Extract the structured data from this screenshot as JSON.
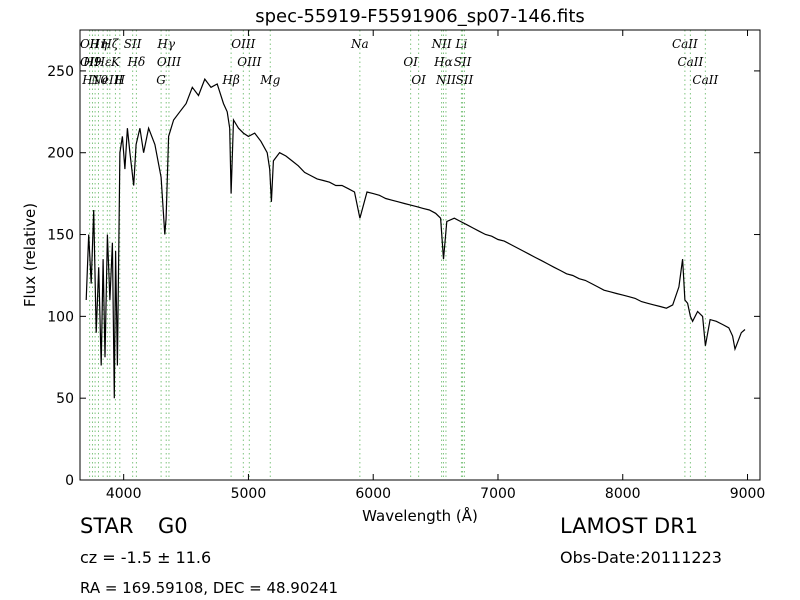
{
  "chart_data": {
    "type": "line",
    "title": "spec-55919-F5591906_sp07-146.fits",
    "xlabel": "Wavelength (Å)",
    "ylabel": "Flux (relative)",
    "xlim": [
      3650,
      9100
    ],
    "ylim": [
      0,
      275
    ],
    "xticks": [
      4000,
      5000,
      6000,
      7000,
      8000,
      9000
    ],
    "yticks": [
      0,
      50,
      100,
      150,
      200,
      250
    ],
    "grid": false,
    "line_color": "#000000",
    "marker_color": "#7fc47f",
    "series": [
      {
        "x": [
          3700,
          3720,
          3740,
          3760,
          3780,
          3800,
          3820,
          3835,
          3850,
          3870,
          3890,
          3910,
          3925,
          3935,
          3950,
          3970,
          3990,
          4010,
          4030,
          4050,
          4080,
          4100,
          4130,
          4160,
          4200,
          4250,
          4300,
          4330,
          4340,
          4360,
          4400,
          4450,
          4500,
          4550,
          4600,
          4650,
          4700,
          4750,
          4800,
          4830,
          4850,
          4861,
          4880,
          4920,
          4960,
          5000,
          5050,
          5100,
          5150,
          5170,
          5184,
          5200,
          5250,
          5300,
          5350,
          5400,
          5450,
          5500,
          5550,
          5600,
          5650,
          5700,
          5750,
          5800,
          5850,
          5893,
          5950,
          6000,
          6050,
          6100,
          6150,
          6200,
          6250,
          6300,
          6350,
          6400,
          6450,
          6500,
          6540,
          6563,
          6590,
          6650,
          6700,
          6750,
          6800,
          6850,
          6900,
          6950,
          7000,
          7050,
          7100,
          7150,
          7200,
          7250,
          7300,
          7350,
          7400,
          7450,
          7500,
          7550,
          7600,
          7650,
          7700,
          7750,
          7800,
          7850,
          7900,
          7950,
          8000,
          8050,
          8100,
          8150,
          8200,
          8250,
          8300,
          8350,
          8400,
          8450,
          8480,
          8498,
          8520,
          8542,
          8560,
          8600,
          8640,
          8662,
          8700,
          8750,
          8800,
          8850,
          8880,
          8900,
          8950,
          8980
        ],
        "y": [
          110,
          150,
          120,
          165,
          90,
          130,
          70,
          135,
          75,
          150,
          110,
          145,
          50,
          140,
          70,
          200,
          210,
          190,
          215,
          200,
          180,
          205,
          215,
          200,
          215,
          205,
          185,
          150,
          160,
          210,
          220,
          225,
          230,
          240,
          235,
          245,
          240,
          242,
          230,
          225,
          215,
          175,
          220,
          215,
          212,
          210,
          212,
          207,
          200,
          190,
          170,
          195,
          200,
          198,
          195,
          192,
          188,
          186,
          184,
          183,
          182,
          180,
          180,
          178,
          176,
          160,
          176,
          175,
          174,
          172,
          171,
          170,
          169,
          168,
          167,
          166,
          165,
          163,
          160,
          135,
          158,
          160,
          158,
          156,
          154,
          152,
          150,
          149,
          147,
          146,
          144,
          142,
          140,
          138,
          136,
          134,
          132,
          130,
          128,
          126,
          125,
          123,
          122,
          120,
          118,
          116,
          115,
          114,
          113,
          112,
          111,
          109,
          108,
          107,
          106,
          105,
          107,
          118,
          135,
          110,
          108,
          100,
          97,
          103,
          100,
          82,
          98,
          97,
          95,
          93,
          88,
          80,
          90,
          92
        ]
      }
    ],
    "lines": [
      {
        "x": 3727,
        "labels": [
          "OII",
          "OII"
        ]
      },
      {
        "x": 3750,
        "labels": [
          "H9"
        ]
      },
      {
        "x": 3771,
        "labels": [
          "H10"
        ]
      },
      {
        "x": 3798,
        "labels": [
          "Hη"
        ]
      },
      {
        "x": 3835,
        "labels": [
          "Hε"
        ]
      },
      {
        "x": 3869,
        "labels": [
          "NeIII"
        ]
      },
      {
        "x": 3889,
        "labels": [
          "Hζ"
        ]
      },
      {
        "x": 3934,
        "labels": [
          "K"
        ]
      },
      {
        "x": 3969,
        "labels": [
          "H"
        ]
      },
      {
        "x": 4072,
        "labels": [
          "SII"
        ]
      },
      {
        "x": 4102,
        "labels": [
          "Hδ"
        ]
      },
      {
        "x": 4300,
        "labels": [
          "G"
        ]
      },
      {
        "x": 4341,
        "labels": [
          "Hγ"
        ]
      },
      {
        "x": 4363,
        "labels": [
          "OIII"
        ]
      },
      {
        "x": 4861,
        "labels": [
          "Hβ"
        ]
      },
      {
        "x": 4959,
        "labels": [
          "OIII"
        ]
      },
      {
        "x": 5007,
        "labels": [
          "OIII"
        ]
      },
      {
        "x": 5175,
        "labels": [
          "Mg"
        ]
      },
      {
        "x": 5893,
        "labels": [
          "Na"
        ]
      },
      {
        "x": 6300,
        "labels": [
          "OI"
        ]
      },
      {
        "x": 6364,
        "labels": [
          "OI"
        ]
      },
      {
        "x": 6548,
        "labels": [
          "NII"
        ]
      },
      {
        "x": 6563,
        "labels": [
          "Hα"
        ]
      },
      {
        "x": 6583,
        "labels": [
          "NII"
        ]
      },
      {
        "x": 6707,
        "labels": [
          "Li"
        ]
      },
      {
        "x": 6716,
        "labels": [
          "SII"
        ]
      },
      {
        "x": 6731,
        "labels": [
          "SII"
        ]
      },
      {
        "x": 8498,
        "labels": [
          "CaII"
        ]
      },
      {
        "x": 8542,
        "labels": [
          "CaII"
        ]
      },
      {
        "x": 8662,
        "labels": [
          "CaII"
        ]
      }
    ]
  },
  "info": {
    "class_label": "STAR",
    "subclass_label": "G0",
    "cz_text": "cz = -1.5 ± 11.6",
    "coords_text": "RA = 169.59108, DEC = 48.90241",
    "survey_text": "LAMOST DR1",
    "obs_date_text": "Obs-Date:20111223"
  }
}
